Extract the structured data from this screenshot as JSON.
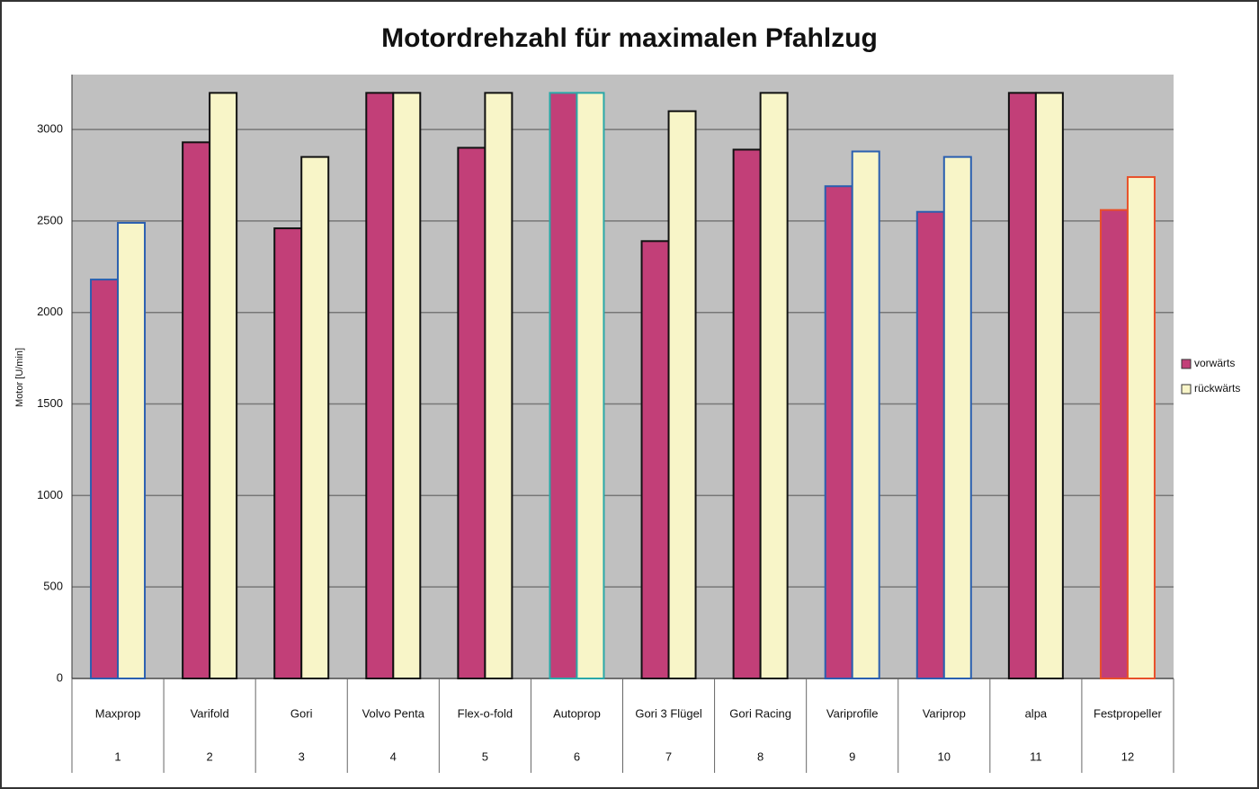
{
  "chart_data": {
    "type": "bar",
    "title": "Motordrehzahl für maximalen Pfahlzug",
    "y_label": "Motor [U/min]",
    "categories": [
      "Maxprop",
      "Varifold",
      "Gori",
      "Volvo Penta",
      "Flex-o-fold",
      "Autoprop",
      "Gori 3 Flügel",
      "Gori Racing",
      "Variprofile",
      "Variprop",
      "alpa",
      "Festpropeller"
    ],
    "category_numbers": [
      1,
      2,
      3,
      4,
      5,
      6,
      7,
      8,
      9,
      10,
      11,
      12
    ],
    "edge_colors": [
      "#2a5fb0",
      "#111111",
      "#111111",
      "#111111",
      "#111111",
      "#2aa8a8",
      "#111111",
      "#111111",
      "#2a5fb0",
      "#2a5fb0",
      "#111111",
      "#e8502a"
    ],
    "series": [
      {
        "name": "vorwärts",
        "color": "#c23f78",
        "values": [
          2180,
          2930,
          2460,
          3200,
          2900,
          3200,
          2390,
          2890,
          2690,
          2550,
          3200,
          2560
        ]
      },
      {
        "name": "rückwärts",
        "color": "#f8f5c8",
        "values": [
          2490,
          3200,
          2850,
          3200,
          3200,
          3200,
          3100,
          3200,
          2880,
          2850,
          3200,
          2740
        ]
      }
    ],
    "ylim": [
      0,
      3300
    ],
    "yticks": [
      0,
      500,
      1000,
      1500,
      2000,
      2500,
      3000
    ],
    "grid": true,
    "legend": "right"
  }
}
